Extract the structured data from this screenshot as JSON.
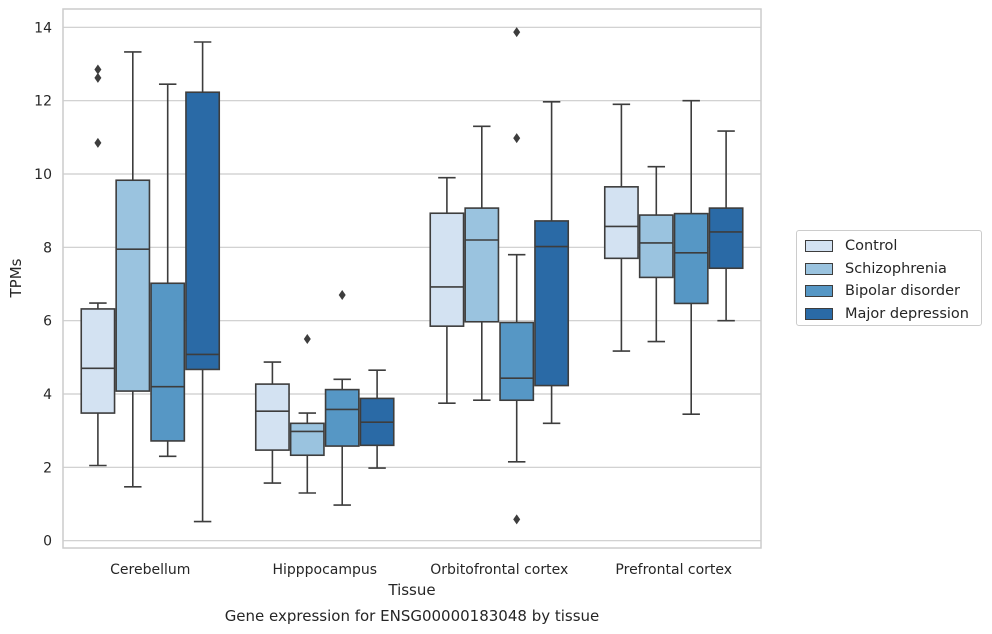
{
  "caption": "Gene expression for ENSG00000183048 by tissue",
  "chart_data": {
    "type": "box",
    "xlabel": "Tissue",
    "ylabel": "TPMs",
    "ylim": [
      -0.2,
      14.5
    ],
    "yticks": [
      0,
      2,
      4,
      6,
      8,
      10,
      12,
      14
    ],
    "grid": "horizontal",
    "legend_position": "right",
    "categories": [
      "Cerebellum",
      "Hipppocampus",
      "Orbitofrontal cortex",
      "Prefrontal cortex"
    ],
    "series": [
      {
        "name": "Control",
        "color": "#d3e2f2",
        "boxes": [
          {
            "whisker_low": 2.05,
            "q1": 3.48,
            "median": 4.7,
            "q3": 6.32,
            "whisker_high": 6.48,
            "outliers": [
              10.85,
              12.62,
              12.85
            ]
          },
          {
            "whisker_low": 1.57,
            "q1": 2.47,
            "median": 3.53,
            "q3": 4.27,
            "whisker_high": 4.87,
            "outliers": []
          },
          {
            "whisker_low": 3.75,
            "q1": 5.85,
            "median": 6.92,
            "q3": 8.93,
            "whisker_high": 9.9,
            "outliers": []
          },
          {
            "whisker_low": 5.17,
            "q1": 7.7,
            "median": 8.57,
            "q3": 9.65,
            "whisker_high": 11.9,
            "outliers": []
          }
        ]
      },
      {
        "name": "Schizophrenia",
        "color": "#9ac3df",
        "boxes": [
          {
            "whisker_low": 1.47,
            "q1": 4.08,
            "median": 7.95,
            "q3": 9.83,
            "whisker_high": 13.33,
            "outliers": []
          },
          {
            "whisker_low": 1.3,
            "q1": 2.33,
            "median": 2.98,
            "q3": 3.2,
            "whisker_high": 3.48,
            "outliers": [
              5.5
            ]
          },
          {
            "whisker_low": 3.83,
            "q1": 5.97,
            "median": 8.2,
            "q3": 9.07,
            "whisker_high": 11.3,
            "outliers": []
          },
          {
            "whisker_low": 5.43,
            "q1": 7.18,
            "median": 8.12,
            "q3": 8.88,
            "whisker_high": 10.2,
            "outliers": []
          }
        ]
      },
      {
        "name": "Bipolar disorder",
        "color": "#5697c5",
        "boxes": [
          {
            "whisker_low": 2.3,
            "q1": 2.72,
            "median": 4.2,
            "q3": 7.02,
            "whisker_high": 12.45,
            "outliers": []
          },
          {
            "whisker_low": 0.97,
            "q1": 2.58,
            "median": 3.58,
            "q3": 4.12,
            "whisker_high": 4.4,
            "outliers": [
              6.7
            ]
          },
          {
            "whisker_low": 2.15,
            "q1": 3.83,
            "median": 4.43,
            "q3": 5.95,
            "whisker_high": 7.8,
            "outliers": [
              0.58,
              10.98,
              13.87
            ]
          },
          {
            "whisker_low": 3.45,
            "q1": 6.47,
            "median": 7.85,
            "q3": 8.92,
            "whisker_high": 12.0,
            "outliers": []
          }
        ]
      },
      {
        "name": "Major depression",
        "color": "#2a6aa6",
        "boxes": [
          {
            "whisker_low": 0.52,
            "q1": 4.67,
            "median": 5.08,
            "q3": 12.23,
            "whisker_high": 13.6,
            "outliers": []
          },
          {
            "whisker_low": 1.98,
            "q1": 2.6,
            "median": 3.23,
            "q3": 3.88,
            "whisker_high": 4.65,
            "outliers": []
          },
          {
            "whisker_low": 3.2,
            "q1": 4.23,
            "median": 8.02,
            "q3": 8.72,
            "whisker_high": 11.97,
            "outliers": []
          },
          {
            "whisker_low": 6.0,
            "q1": 7.43,
            "median": 8.42,
            "q3": 9.07,
            "whisker_high": 11.17,
            "outliers": []
          }
        ]
      }
    ]
  }
}
